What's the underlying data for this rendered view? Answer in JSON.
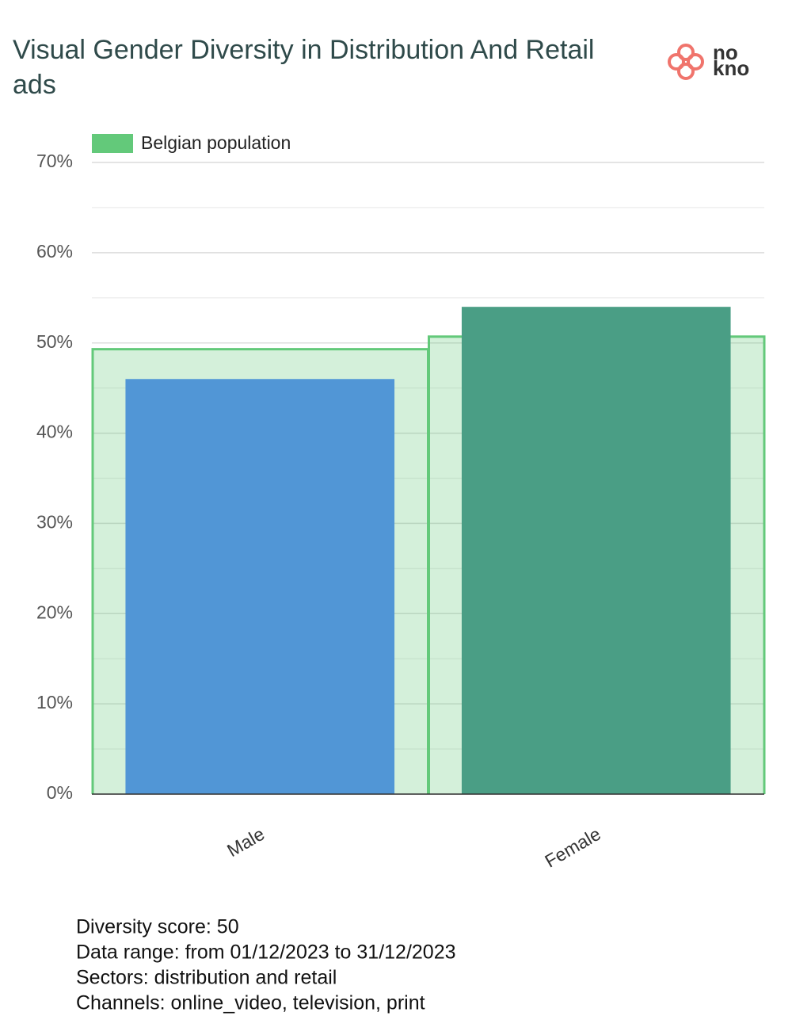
{
  "chart_data": {
    "type": "bar",
    "title": "Visual Gender Diversity in Distribution And Retail ads",
    "logo_top": "no",
    "logo_bottom": "kno",
    "categories": [
      "Male",
      "Female"
    ],
    "values": [
      46,
      54
    ],
    "colors": [
      "#5196d6",
      "#4a9e85"
    ],
    "reference": {
      "name": "Belgian population",
      "color": "#63c97a",
      "values": [
        49.3,
        50.7
      ]
    },
    "ylim": [
      0,
      70
    ],
    "yticks": [
      {
        "value": 0,
        "label": "0%"
      },
      {
        "value": 10,
        "label": "10%"
      },
      {
        "value": 20,
        "label": "20%"
      },
      {
        "value": 30,
        "label": "30%"
      },
      {
        "value": 40,
        "label": "40%"
      },
      {
        "value": 50,
        "label": "50%"
      },
      {
        "value": 60,
        "label": "60%"
      },
      {
        "value": 70,
        "label": "70%"
      }
    ],
    "minor_yticks": [
      5,
      15,
      25,
      35,
      45,
      55,
      65
    ],
    "grid": true,
    "footer": [
      "Diversity score: 50",
      "Data range: from 01/12/2023 to 31/12/2023",
      "Sectors: distribution and retail",
      "Channels: online_video, television, print"
    ]
  }
}
